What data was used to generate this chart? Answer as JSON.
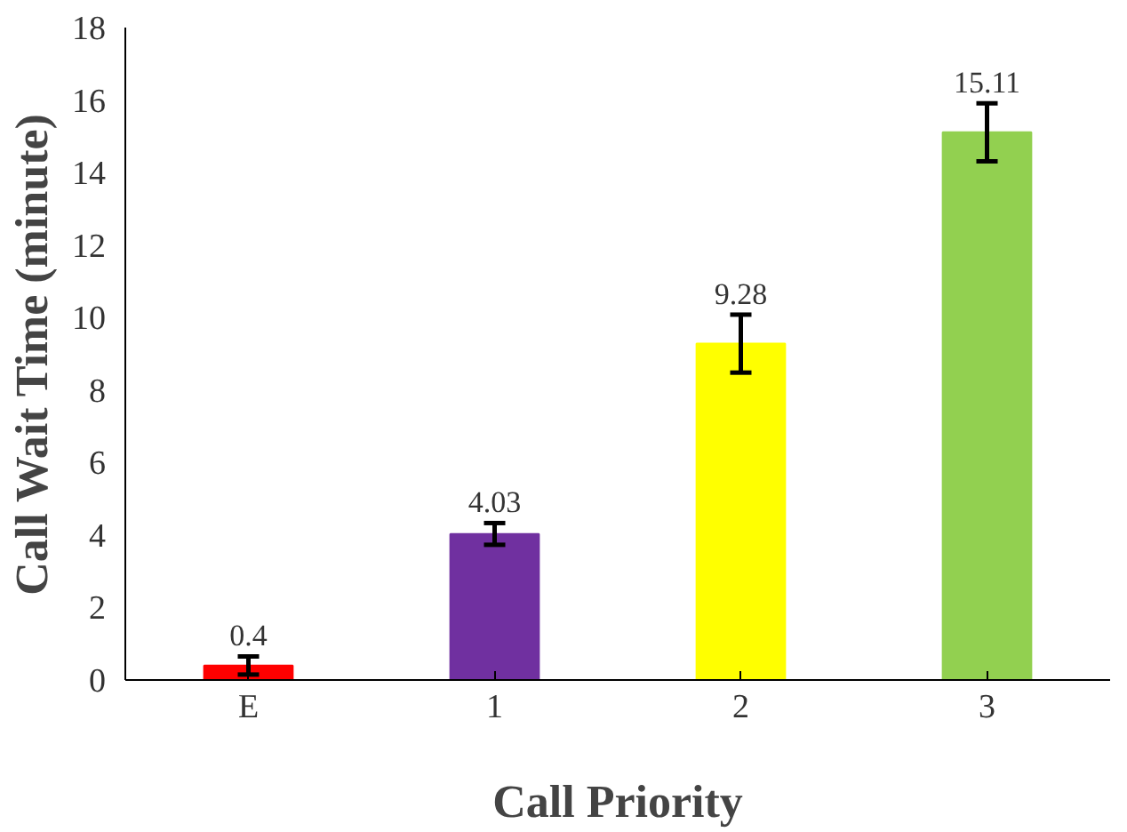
{
  "chart_data": {
    "type": "bar",
    "xlabel": "Call Priority",
    "ylabel": "Call Wait Time (minute)",
    "categories": [
      "E",
      "1",
      "2",
      "3"
    ],
    "values": [
      0.4,
      4.03,
      9.28,
      15.11
    ],
    "colors": [
      "#ff0000",
      "#7030a0",
      "#ffff00",
      "#92d050"
    ],
    "errors": [
      0.25,
      0.3,
      0.8,
      0.8
    ],
    "data_labels": true,
    "ylim": [
      0,
      18
    ],
    "yticks": [
      0,
      2,
      4,
      6,
      8,
      10,
      12,
      14,
      16,
      18
    ],
    "grid": false
  }
}
